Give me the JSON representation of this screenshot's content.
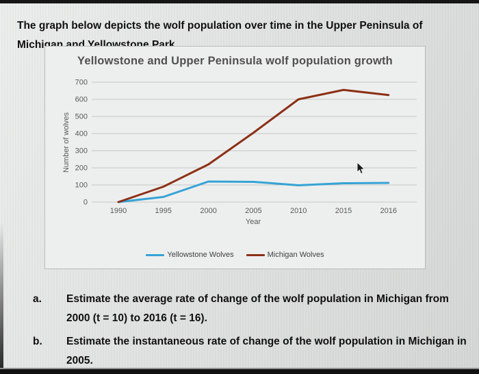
{
  "page": {
    "intro_text": "The graph below depicts the wolf population over time in the Upper Peninsula of Michigan and Yellowstone Park.",
    "questions": [
      {
        "label": "a.",
        "text": "Estimate the average rate of change of the wolf population in Michigan from 2000 (t = 10) to 2016 (t = 16)."
      },
      {
        "label": "b.",
        "text": "Estimate the instantaneous rate of change of the wolf population in Michigan in 2005."
      }
    ]
  },
  "chart_data": {
    "type": "line",
    "title": "Yellowstone and Upper Peninsula wolf population growth",
    "xlabel": "Year",
    "ylabel": "Number of wolves",
    "categories": [
      "1990",
      "1995",
      "2000",
      "2005",
      "2010",
      "2015",
      "2016"
    ],
    "series": [
      {
        "name": "Yellowstone Wolves",
        "color": "#35a3d6",
        "values": [
          0,
          30,
          120,
          118,
          98,
          110,
          112
        ]
      },
      {
        "name": "Michigan Wolves",
        "color": "#8c2f15",
        "values": [
          0,
          90,
          220,
          405,
          600,
          655,
          625
        ]
      }
    ],
    "ylim": [
      0,
      700
    ],
    "ytick_step": 100,
    "grid": true,
    "gridline_color": "#c3c7c5",
    "legend_position": "bottom",
    "axis_text_color": "#595959"
  }
}
